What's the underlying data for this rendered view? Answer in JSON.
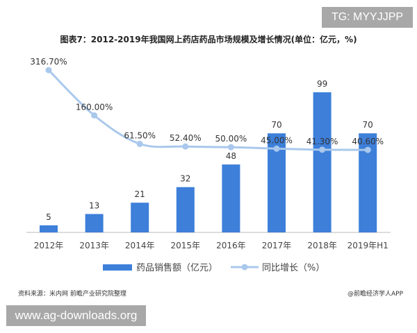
{
  "watermark_top": "TG: MYYJJPP",
  "watermark_bottom": "www.ag-downloads.org",
  "source": "资料来源：米内网 前瞻产业研究院整理",
  "credit": "@前瞻经济学人APP",
  "chart_data": {
    "type": "bar+line",
    "title": "图表7：2012-2019年我国网上药店药品市场规模及增长情况(单位：亿元，%)",
    "categories": [
      "2012年",
      "2013年",
      "2014年",
      "2015年",
      "2016年",
      "2017年",
      "2018年",
      "2019年H1"
    ],
    "series": [
      {
        "name": "药品销售额（亿元）",
        "type": "bar",
        "color": "#3d7fd9",
        "values": [
          5,
          13,
          21,
          32,
          48,
          70,
          99,
          70
        ],
        "labels": [
          "5",
          "13",
          "21",
          "32",
          "48",
          "70",
          "99",
          "70"
        ]
      },
      {
        "name": "同比增长（%）",
        "type": "line",
        "color": "#a9c8ec",
        "values": [
          316.7,
          160.0,
          61.5,
          52.4,
          50.0,
          45.0,
          41.3,
          40.6
        ],
        "labels": [
          "316.70%",
          "160.00%",
          "61.50%",
          "52.40%",
          "50.00%",
          "45.00%",
          "41.30%",
          "40.60%"
        ]
      }
    ],
    "legend": "bottom",
    "grid": false
  }
}
